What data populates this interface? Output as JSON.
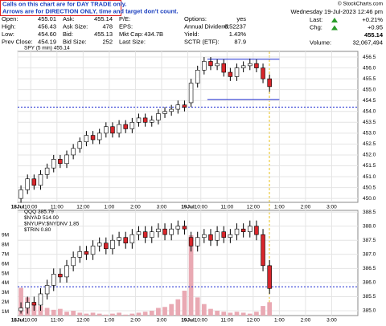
{
  "header": {
    "notes": [
      "Calls on this chart are for DAY TRADE only.",
      "Arrows are for DIRECTION ONLY, time and target don't count."
    ],
    "copyright": "© StockCharts.com",
    "datetime": "Wednesday 19-Jul-2023 12:46 pm",
    "fields": [
      [
        [
          "Open:",
          "455.01"
        ],
        [
          "Ask:",
          "455.14"
        ],
        [
          "P/E:",
          ""
        ],
        [
          "Options:",
          "yes"
        ]
      ],
      [
        [
          "High:",
          "456.43"
        ],
        [
          "Ask Size:",
          "478"
        ],
        [
          "EPS:",
          ""
        ],
        [
          "Annual Dividend:",
          "6.52237"
        ]
      ],
      [
        [
          "Low:",
          "454.60"
        ],
        [
          "Bid:",
          "455.13"
        ],
        [
          "Mkt Cap:",
          "434.7B"
        ],
        [
          "Yield:",
          "1.43%"
        ]
      ],
      [
        [
          "Prev Close:",
          "454.19"
        ],
        [
          "Bid Size:",
          "252"
        ],
        [
          "Last Size:",
          ""
        ],
        [
          "SCTR (ETF):",
          "87.9"
        ]
      ]
    ],
    "quote": [
      [
        "Last:",
        "+0.21%"
      ],
      [
        "Chg:",
        "+0.95"
      ],
      [
        "",
        "455.14"
      ],
      [
        "Volume:",
        "32,067,494"
      ]
    ]
  },
  "chart_data": [
    {
      "type": "candlestick",
      "legend": [
        "SPY (5 min) 455.14"
      ],
      "xlim": [
        0,
        52
      ],
      "xticks": [
        {
          "value": 0,
          "label": "18Jul"
        },
        {
          "value": 2,
          "label": "10:00"
        },
        {
          "value": 6,
          "label": "11:00"
        },
        {
          "value": 10,
          "label": "12:00"
        },
        {
          "value": 14,
          "label": "1:00"
        },
        {
          "value": 18,
          "label": "2:00"
        },
        {
          "value": 22,
          "label": "3:00"
        },
        {
          "value": 26,
          "label": "19Jul"
        },
        {
          "value": 28,
          "label": "10:00"
        },
        {
          "value": 32,
          "label": "11:00"
        },
        {
          "value": 36,
          "label": "12:00"
        },
        {
          "value": 40,
          "label": "1:00"
        },
        {
          "value": 44,
          "label": "2:00"
        },
        {
          "value": 48,
          "label": "3:00"
        }
      ],
      "ylim": [
        449.82,
        456.76
      ],
      "yticks": [
        {
          "value": 450,
          "label": "450.0"
        },
        {
          "value": 450.5,
          "label": "450.5"
        },
        {
          "value": 451,
          "label": "451.0"
        },
        {
          "value": 451.5,
          "label": "451.5"
        },
        {
          "value": 452,
          "label": "452.0"
        },
        {
          "value": 452.5,
          "label": "452.5"
        },
        {
          "value": 453,
          "label": "453.0"
        },
        {
          "value": 453.5,
          "label": "453.5"
        },
        {
          "value": 454,
          "label": "454.0"
        },
        {
          "value": 454.5,
          "label": "454.5"
        },
        {
          "value": 455,
          "label": "455.0"
        },
        {
          "value": 455.5,
          "label": "455.5"
        },
        {
          "value": 456,
          "label": "456.0"
        },
        {
          "value": 456.5,
          "label": "456.5"
        }
      ],
      "up_color": "#ffffff",
      "down_color": "#d8262b",
      "line_color": "#1c2bd1",
      "hlines": [
        456.4,
        454.55
      ],
      "dashed_hline": 454.2,
      "open": [
        450.0,
        450.4,
        450.9,
        450.6,
        451.1,
        451.4,
        451.8,
        451.6,
        452.0,
        452.3,
        452.6,
        452.9,
        452.7,
        453.0,
        453.3,
        453.0,
        453.4,
        453.2,
        453.5,
        453.7,
        453.5,
        453.6,
        453.9,
        454.0,
        454.1,
        454.3,
        454.4,
        455.3,
        455.9,
        456.3,
        456.1,
        456.2,
        455.8,
        455.6,
        456.0,
        456.1,
        456.2,
        456.0,
        455.5
      ],
      "high": [
        450.6,
        451.1,
        451.1,
        451.3,
        451.6,
        452.0,
        452.0,
        452.2,
        452.5,
        452.8,
        453.1,
        453.1,
        453.2,
        453.5,
        453.5,
        453.6,
        453.6,
        453.7,
        453.9,
        453.9,
        453.8,
        454.1,
        454.2,
        454.3,
        454.5,
        454.5,
        455.5,
        456.1,
        456.5,
        456.5,
        456.4,
        456.4,
        456.0,
        456.2,
        456.3,
        456.43,
        456.4,
        456.2,
        455.7
      ],
      "low": [
        449.8,
        450.2,
        450.4,
        450.4,
        450.9,
        451.2,
        451.4,
        451.4,
        451.8,
        452.1,
        452.4,
        452.5,
        452.5,
        452.8,
        452.8,
        452.8,
        453.0,
        453.0,
        453.3,
        453.3,
        453.3,
        453.4,
        453.7,
        453.8,
        453.9,
        454.0,
        454.2,
        455.1,
        455.7,
        455.9,
        455.9,
        455.6,
        455.4,
        455.4,
        455.8,
        455.9,
        455.8,
        455.3,
        454.9
      ],
      "close": [
        450.4,
        450.9,
        450.6,
        451.1,
        451.4,
        451.8,
        451.6,
        452.0,
        452.3,
        452.6,
        452.9,
        452.7,
        453.0,
        453.3,
        453.0,
        453.4,
        453.2,
        453.5,
        453.7,
        453.5,
        453.6,
        453.9,
        454.0,
        454.1,
        454.3,
        454.19,
        455.3,
        455.9,
        456.3,
        456.1,
        456.2,
        455.8,
        455.6,
        456.0,
        456.1,
        456.2,
        456.0,
        455.5,
        455.14
      ]
    },
    {
      "type": "candlestick",
      "legend": [
        "QQQ 385.79",
        "$NYAD 514.00",
        "$NYUPV:$NYDNV 1.85",
        "$TRIN 0.80"
      ],
      "xlim": [
        0,
        52
      ],
      "xticks": [
        {
          "value": 0,
          "label": "18Jul"
        },
        {
          "value": 2,
          "label": "10:00"
        },
        {
          "value": 6,
          "label": "11:00"
        },
        {
          "value": 10,
          "label": "12:00"
        },
        {
          "value": 14,
          "label": "1:00"
        },
        {
          "value": 18,
          "label": "2:00"
        },
        {
          "value": 22,
          "label": "3:00"
        },
        {
          "value": 26,
          "label": "19Jul"
        },
        {
          "value": 28,
          "label": "10:00"
        },
        {
          "value": 32,
          "label": "11:00"
        },
        {
          "value": 36,
          "label": "12:00"
        },
        {
          "value": 40,
          "label": "1:00"
        },
        {
          "value": 44,
          "label": "2:00"
        },
        {
          "value": 48,
          "label": "3:00"
        }
      ],
      "ylim": [
        384.83,
        388.56
      ],
      "yticks": [
        {
          "value": 385,
          "label": "385.0"
        },
        {
          "value": 385.5,
          "label": "385.5"
        },
        {
          "value": 386,
          "label": "386.0"
        },
        {
          "value": 386.5,
          "label": "386.5"
        },
        {
          "value": 387,
          "label": "387.0"
        },
        {
          "value": 387.5,
          "label": "387.5"
        },
        {
          "value": 388,
          "label": "388.0"
        },
        {
          "value": 388.5,
          "label": "388.5"
        }
      ],
      "vlim": [
        0.6,
        11.6
      ],
      "vticks": [
        {
          "value": 1,
          "label": "1M"
        },
        {
          "value": 2,
          "label": "2M"
        },
        {
          "value": 3,
          "label": "3M"
        },
        {
          "value": 4,
          "label": "4M"
        },
        {
          "value": 5,
          "label": "5M"
        },
        {
          "value": 6,
          "label": "6M"
        },
        {
          "value": 7,
          "label": "7M"
        },
        {
          "value": 8,
          "label": "8M"
        },
        {
          "value": 9,
          "label": "9M"
        }
      ],
      "up_color": "#ffffff",
      "down_color": "#d8262b",
      "line_color": "#1c2bd1",
      "volume_color": "#e9a9b3",
      "dashed_hline": 385.85,
      "open": [
        385.0,
        385.1,
        385.3,
        385.2,
        385.6,
        385.9,
        386.3,
        386.2,
        386.6,
        386.9,
        387.1,
        387.0,
        387.3,
        387.4,
        387.2,
        387.5,
        387.6,
        387.4,
        387.7,
        387.8,
        387.6,
        387.8,
        387.9,
        387.7,
        387.9,
        388.0,
        387.6,
        387.3,
        387.6,
        387.7,
        387.5,
        387.8,
        387.6,
        387.7,
        387.9,
        387.8,
        388.0,
        387.7,
        386.6
      ],
      "high": [
        385.3,
        385.5,
        385.5,
        385.8,
        386.1,
        386.5,
        386.5,
        386.8,
        387.1,
        387.3,
        387.3,
        387.5,
        387.6,
        387.6,
        387.7,
        387.8,
        387.8,
        387.9,
        388.0,
        388.0,
        388.0,
        388.1,
        388.1,
        388.1,
        388.2,
        388.2,
        387.8,
        387.8,
        387.9,
        387.9,
        388.0,
        388.0,
        387.9,
        388.1,
        388.1,
        388.2,
        388.2,
        387.9,
        386.8
      ],
      "low": [
        384.9,
        384.9,
        385.0,
        385.0,
        385.4,
        385.7,
        386.0,
        386.0,
        386.4,
        386.7,
        386.8,
        386.8,
        387.1,
        387.0,
        387.0,
        387.3,
        387.2,
        387.2,
        387.5,
        387.4,
        387.4,
        387.6,
        387.5,
        387.5,
        387.7,
        387.7,
        387.1,
        387.1,
        387.4,
        387.3,
        387.3,
        387.4,
        387.4,
        387.5,
        387.6,
        387.6,
        387.5,
        386.4,
        385.6
      ],
      "close": [
        385.1,
        385.3,
        385.2,
        385.6,
        385.9,
        386.3,
        386.2,
        386.6,
        386.9,
        387.1,
        387.0,
        387.3,
        387.4,
        387.2,
        387.5,
        387.6,
        387.4,
        387.7,
        387.8,
        387.6,
        387.8,
        387.9,
        387.7,
        387.9,
        388.0,
        387.9,
        387.3,
        387.6,
        387.7,
        387.5,
        387.8,
        387.6,
        387.7,
        387.9,
        387.8,
        388.0,
        387.7,
        386.6,
        385.79
      ],
      "volume": [
        3.5,
        2.5,
        1.8,
        1.6,
        1.4,
        1.2,
        1.3,
        1.0,
        1.1,
        0.9,
        0.8,
        0.9,
        0.8,
        0.7,
        0.8,
        0.9,
        0.7,
        0.8,
        0.9,
        1.0,
        1.1,
        1.4,
        1.5,
        1.8,
        2.3,
        3.2,
        9.0,
        2.5,
        1.8,
        1.3,
        1.1,
        1.0,
        0.9,
        1.0,
        0.9,
        0.8,
        1.0,
        1.6,
        2.0
      ]
    }
  ]
}
